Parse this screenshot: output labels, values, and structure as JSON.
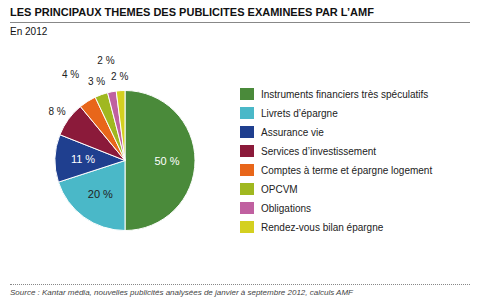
{
  "chart_data": {
    "type": "pie",
    "title": "LES PRINCIPAUX THEMES DES PUBLICITES EXAMINEES PAR L’AMF",
    "subtitle": "En 2012",
    "source": "Source : Kantar média, nouvelles publicités analysées de janvier à septembre 2012, calculs AMF",
    "categories": [
      "Instruments financiers très spéculatifs",
      "Livrets d’épargne",
      "Assurance vie",
      "Services d’investissement",
      "Comptes à terme et épargne logement",
      "OPCVM",
      "Obligations",
      "Rendez-vous bilan épargne"
    ],
    "values": [
      50,
      20,
      11,
      8,
      4,
      3,
      2,
      2
    ],
    "value_labels": [
      "50 %",
      "20 %",
      "11 %",
      "8 %",
      "4 %",
      "3 %",
      "2 %",
      "2 %"
    ],
    "colors": [
      "#4a8a3a",
      "#4ab8c8",
      "#1f3f8f",
      "#8b1a3a",
      "#e8661a",
      "#a0b820",
      "#c060a0",
      "#d4d020"
    ],
    "data_labels": true,
    "legend": "right"
  }
}
